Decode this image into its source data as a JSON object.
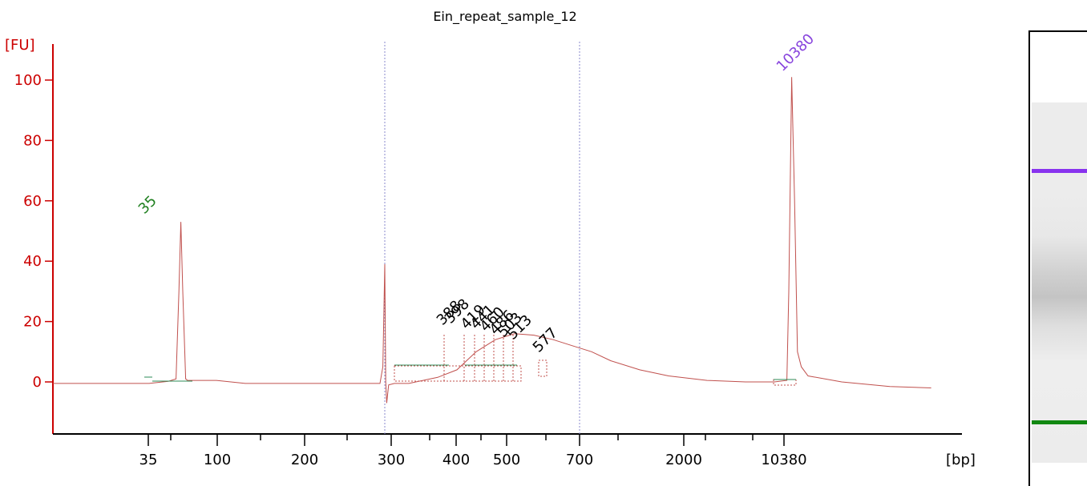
{
  "chart_data": {
    "type": "line",
    "title": "Ein_repeat_sample_12",
    "ylabel": "[FU]",
    "xlabel": "[bp]",
    "ylim": [
      -17,
      115
    ],
    "yticks": [
      0,
      20,
      40,
      60,
      80,
      100
    ],
    "xticks": [
      "35",
      "100",
      "200",
      "300",
      "400",
      "500",
      "700",
      "2000",
      "10380"
    ],
    "grid": false,
    "series": [
      {
        "x_axis": "migration (display units)",
        "points": [
          [
            0,
            -0.5
          ],
          [
            100,
            -0.5
          ],
          [
            120,
            0.2
          ],
          [
            128,
            1
          ],
          [
            131,
            30
          ],
          [
            133,
            53
          ],
          [
            135,
            30
          ],
          [
            138,
            1
          ],
          [
            140,
            0.5
          ],
          [
            170,
            0.5
          ],
          [
            200,
            -0.5
          ],
          [
            310,
            -0.5
          ],
          [
            340,
            -0.5
          ],
          [
            343,
            5
          ],
          [
            345,
            39
          ],
          [
            346,
            0
          ],
          [
            347,
            -7
          ],
          [
            349,
            -1
          ],
          [
            355,
            -0.5
          ],
          [
            370,
            -0.5
          ],
          [
            400,
            1.5
          ],
          [
            420,
            4
          ],
          [
            440,
            10
          ],
          [
            460,
            14
          ],
          [
            480,
            16
          ],
          [
            500,
            15.5
          ],
          [
            520,
            14
          ],
          [
            540,
            12
          ],
          [
            560,
            10
          ],
          [
            580,
            7
          ],
          [
            610,
            4
          ],
          [
            640,
            2
          ],
          [
            680,
            0.5
          ],
          [
            720,
            0
          ],
          [
            750,
            0
          ],
          [
            763,
            0.5
          ],
          [
            765,
            30
          ],
          [
            768,
            101
          ],
          [
            771,
            60
          ],
          [
            774,
            10
          ],
          [
            778,
            5
          ],
          [
            785,
            2
          ],
          [
            820,
            0
          ],
          [
            870,
            -1.5
          ],
          [
            913,
            -2
          ]
        ]
      }
    ],
    "peaks": [
      {
        "label": "35",
        "color": "#208020"
      },
      {
        "label": "10380",
        "color": "#8844dd"
      },
      {
        "label": "388",
        "color": "#000000"
      },
      {
        "label": "398",
        "color": "#000000"
      },
      {
        "label": "419",
        "color": "#000000"
      },
      {
        "label": "441",
        "color": "#000000"
      },
      {
        "label": "460",
        "color": "#000000"
      },
      {
        "label": "486",
        "color": "#000000"
      },
      {
        "label": "503",
        "color": "#000000"
      },
      {
        "label": "513",
        "color": "#000000"
      },
      {
        "label": "577",
        "color": "#000000"
      }
    ],
    "colors": {
      "axis": "#cc0000",
      "trace": "#c0504d",
      "marker_line": "#8888cc",
      "baseline": "#2e8b57",
      "upper_marker": "#8833ee",
      "lower_marker": "#118811"
    }
  }
}
